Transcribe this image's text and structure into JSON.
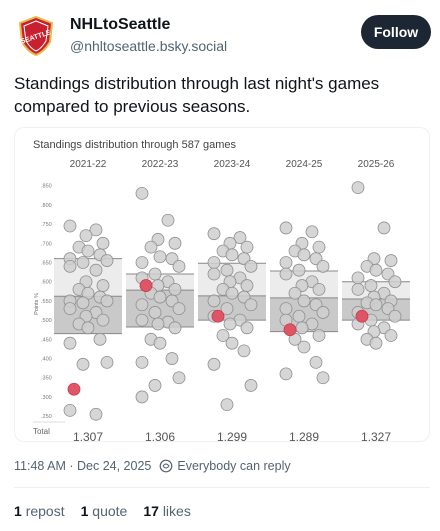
{
  "post": {
    "display_name": "NHLtoSeattle",
    "handle": "@nhltoseattle.bsky.social",
    "follow_label": "Follow",
    "avatar_text": "SEATTLE",
    "text": "Standings distribution through last night's games compared to previous seasons.",
    "timestamp": "11:48 AM · Dec 24, 2025",
    "reply_setting": "Everybody can reply",
    "reposts_count": "1",
    "reposts_label": "repost",
    "quotes_count": "1",
    "quotes_label": "quote",
    "likes_count": "17",
    "likes_label": "likes"
  },
  "colors": {
    "accent_dark": "#1d2733",
    "muted": "#536471",
    "highlight": "#e05566",
    "point": "#cfcfcf",
    "iqr_upper": "#ececec",
    "iqr_lower": "#c9c9c9"
  },
  "chart_data": {
    "type": "scatter",
    "title": "Standings distribution through 587 games",
    "ylabel": "Points %",
    "ylim": [
      0.24,
      0.87
    ],
    "yticks": [
      0.25,
      0.3,
      0.35,
      0.4,
      0.45,
      0.5,
      0.55,
      0.6,
      0.65,
      0.7,
      0.75,
      0.8,
      0.85
    ],
    "ytick_labels": [
      ".250",
      ".300",
      ".350",
      ".400",
      ".450",
      ".500",
      ".550",
      ".600",
      ".650",
      ".700",
      ".750",
      ".800",
      ".850"
    ],
    "total_label": "Total",
    "grid": false,
    "legend": "none",
    "seasons": [
      {
        "name": "2021-22",
        "total": "1,307",
        "q1": 0.465,
        "median": 0.562,
        "q3": 0.66,
        "highlight": 0.32,
        "points": [
          0.745,
          0.735,
          0.72,
          0.7,
          0.69,
          0.68,
          0.67,
          0.66,
          0.655,
          0.65,
          0.64,
          0.63,
          0.6,
          0.59,
          0.58,
          0.57,
          0.56,
          0.55,
          0.55,
          0.545,
          0.53,
          0.52,
          0.51,
          0.5,
          0.49,
          0.48,
          0.45,
          0.44,
          0.39,
          0.385,
          0.265,
          0.255
        ]
      },
      {
        "name": "2022-23",
        "total": "1,306",
        "q1": 0.482,
        "median": 0.578,
        "q3": 0.62,
        "highlight": 0.59,
        "points": [
          0.83,
          0.76,
          0.71,
          0.7,
          0.69,
          0.665,
          0.66,
          0.65,
          0.64,
          0.62,
          0.61,
          0.6,
          0.59,
          0.58,
          0.57,
          0.56,
          0.55,
          0.54,
          0.53,
          0.52,
          0.5,
          0.495,
          0.49,
          0.48,
          0.45,
          0.44,
          0.4,
          0.39,
          0.35,
          0.33,
          0.3
        ]
      },
      {
        "name": "2023-24",
        "total": "1,299",
        "q1": 0.5,
        "median": 0.563,
        "q3": 0.648,
        "highlight": 0.51,
        "points": [
          0.725,
          0.715,
          0.7,
          0.69,
          0.68,
          0.67,
          0.66,
          0.65,
          0.64,
          0.63,
          0.62,
          0.61,
          0.6,
          0.59,
          0.58,
          0.57,
          0.56,
          0.55,
          0.54,
          0.53,
          0.51,
          0.5,
          0.49,
          0.48,
          0.46,
          0.44,
          0.42,
          0.385,
          0.33,
          0.28
        ]
      },
      {
        "name": "2024-25",
        "total": "1,289",
        "q1": 0.47,
        "median": 0.558,
        "q3": 0.628,
        "highlight": 0.475,
        "points": [
          0.74,
          0.73,
          0.7,
          0.69,
          0.68,
          0.67,
          0.66,
          0.65,
          0.64,
          0.63,
          0.62,
          0.6,
          0.59,
          0.58,
          0.57,
          0.55,
          0.54,
          0.53,
          0.52,
          0.51,
          0.5,
          0.49,
          0.48,
          0.46,
          0.45,
          0.43,
          0.39,
          0.36,
          0.35
        ]
      },
      {
        "name": "2025-26",
        "total": "1,327",
        "q1": 0.5,
        "median": 0.555,
        "q3": 0.6,
        "highlight": 0.51,
        "points": [
          0.845,
          0.74,
          0.66,
          0.655,
          0.64,
          0.63,
          0.62,
          0.61,
          0.6,
          0.59,
          0.58,
          0.57,
          0.56,
          0.55,
          0.545,
          0.54,
          0.53,
          0.52,
          0.51,
          0.5,
          0.49,
          0.48,
          0.47,
          0.46,
          0.45,
          0.44
        ]
      }
    ]
  }
}
